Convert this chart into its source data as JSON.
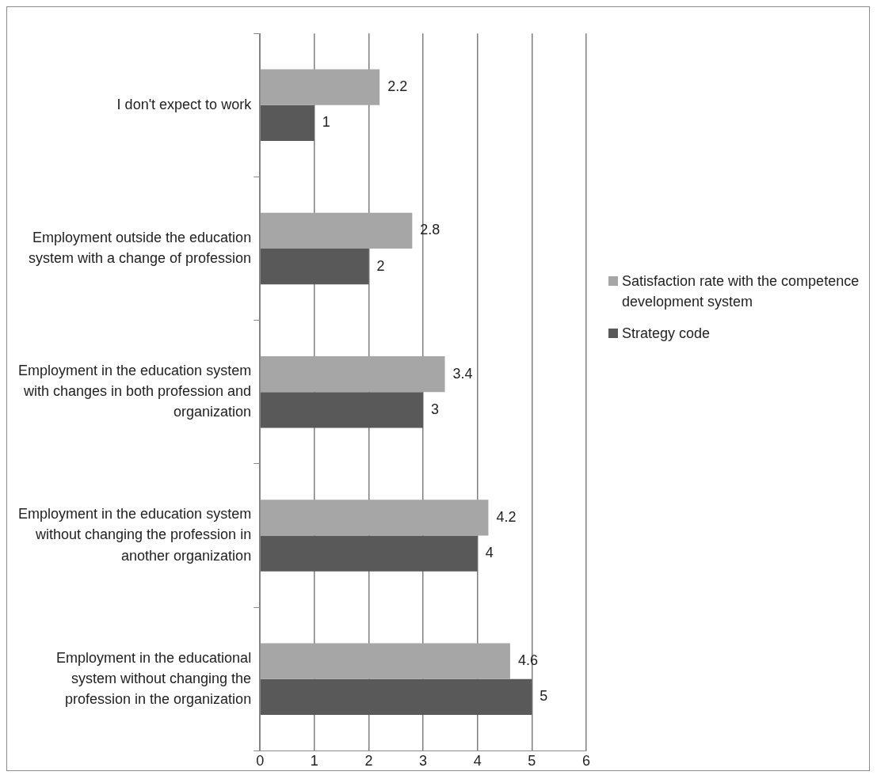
{
  "chart_data": {
    "type": "bar",
    "orientation": "horizontal",
    "categories": [
      "I don't expect to work",
      "Employment outside the education system with a change of profession",
      "Employment in the education system with changes in both profession and organization",
      "Employment in the education system without changing the profession in another organization",
      "Employment in the educational system without changing the profession in the organization"
    ],
    "series": [
      {
        "name": "Satisfaction rate with the competence development system",
        "color": "#a6a6a6",
        "values": [
          2.2,
          2.8,
          3.4,
          4.2,
          4.6
        ]
      },
      {
        "name": "Strategy code",
        "color": "#595959",
        "values": [
          1,
          2,
          3,
          4,
          5
        ]
      }
    ],
    "xlim": [
      0,
      6
    ],
    "xticks": [
      0,
      1,
      2,
      3,
      4,
      5,
      6
    ],
    "grid": "x",
    "legend": "right",
    "data_labels": true
  }
}
